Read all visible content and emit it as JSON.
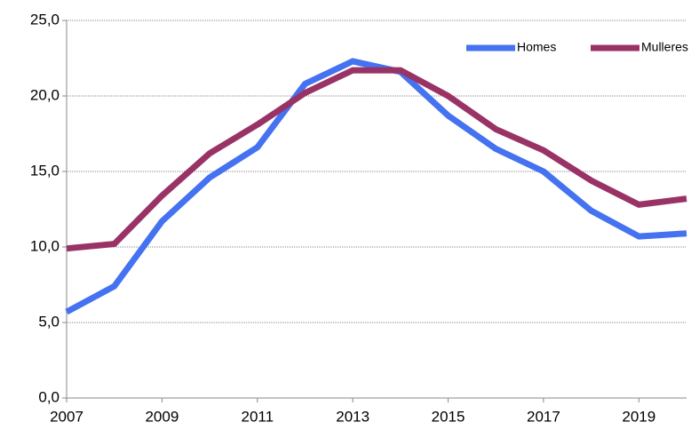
{
  "chart_data": {
    "type": "line",
    "x": [
      2007,
      2008,
      2009,
      2010,
      2011,
      2012,
      2013,
      2014,
      2015,
      2016,
      2017,
      2018,
      2019,
      2020
    ],
    "series": [
      {
        "name": "Homes",
        "color": "#4472f0",
        "values": [
          5.7,
          7.4,
          11.7,
          14.6,
          16.6,
          20.8,
          22.3,
          21.6,
          18.7,
          16.5,
          15.0,
          12.4,
          10.7,
          10.9
        ]
      },
      {
        "name": "Mulleres",
        "color": "#993366",
        "values": [
          9.9,
          10.2,
          13.4,
          16.2,
          18.1,
          20.2,
          21.7,
          21.7,
          20.0,
          17.8,
          16.4,
          14.4,
          12.8,
          13.2
        ]
      }
    ],
    "xlim": [
      2007,
      2020
    ],
    "xticks": [
      2007,
      2009,
      2011,
      2013,
      2015,
      2017,
      2019
    ],
    "ylim": [
      0,
      25
    ],
    "yticks": [
      {
        "value": 0,
        "label": "0,0"
      },
      {
        "value": 5,
        "label": "5,0"
      },
      {
        "value": 10,
        "label": "10,0"
      },
      {
        "value": 15,
        "label": "15,0"
      },
      {
        "value": 20,
        "label": "20,0"
      },
      {
        "value": 25,
        "label": "25,0"
      }
    ],
    "grid": true,
    "legend": "top-right"
  }
}
